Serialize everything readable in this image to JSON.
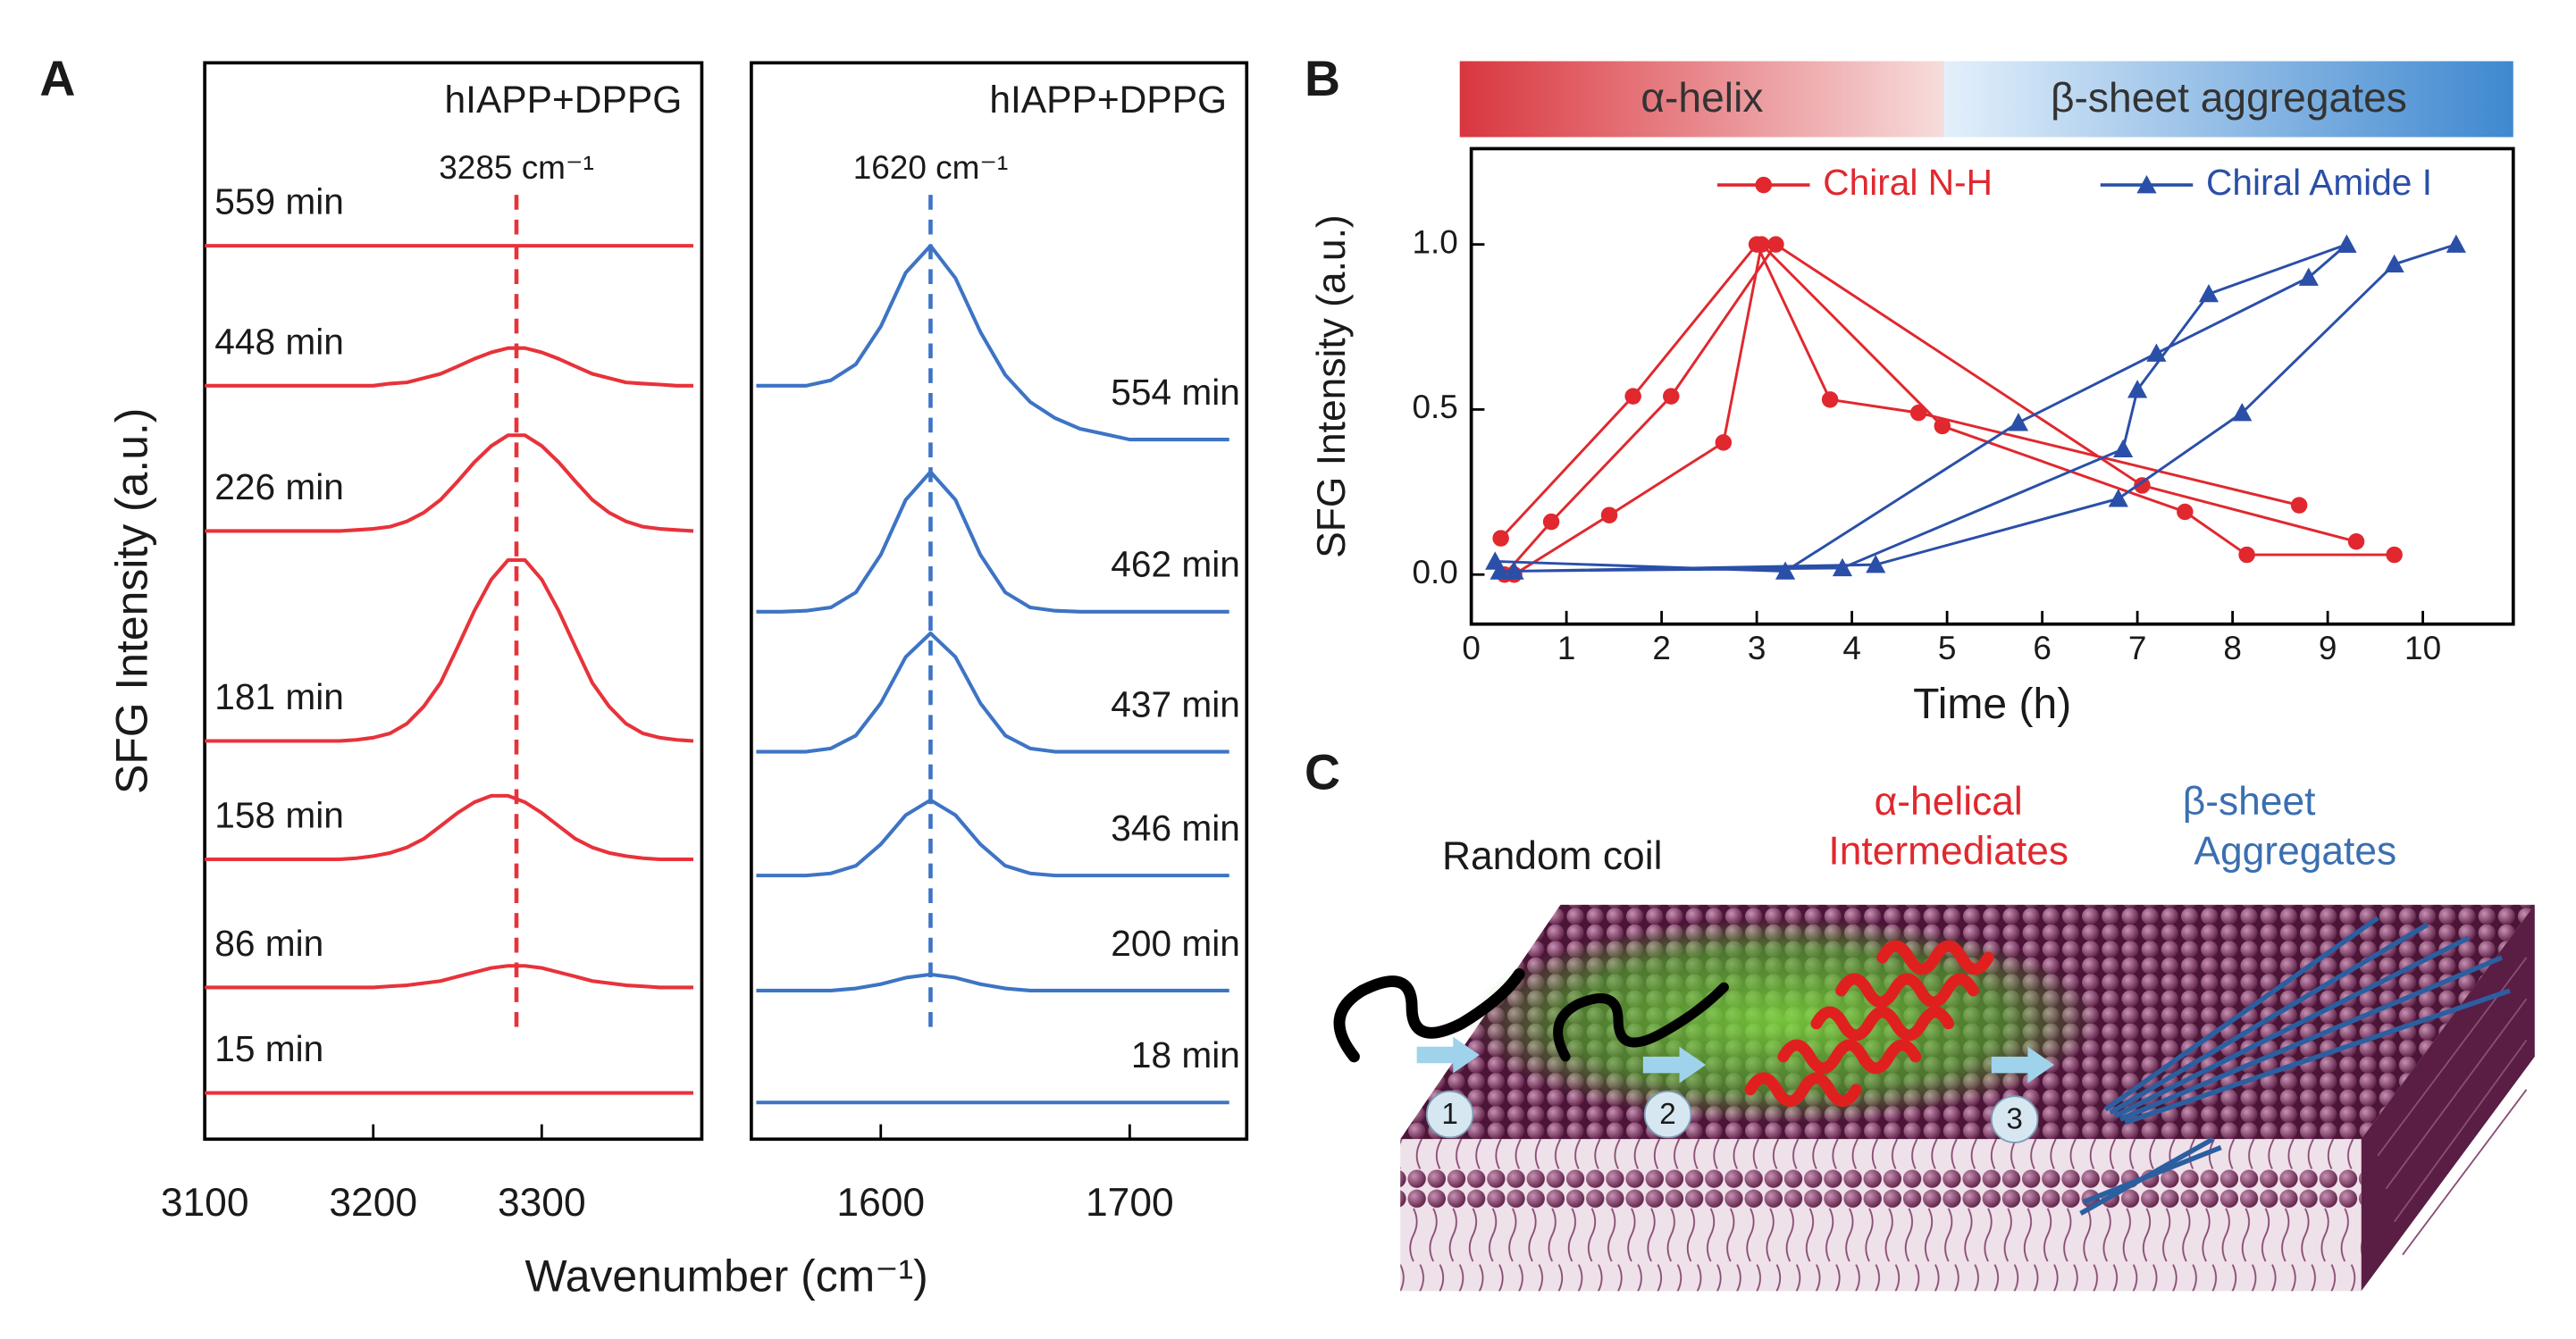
{
  "panel_labels": [
    "A",
    "B",
    "C"
  ],
  "chart_data": [
    {
      "type": "line",
      "title": "hIAPP+DPPG",
      "ylabel": "SFG Intensity (a.u.)",
      "xlabel": "Wavenumber (cm⁻¹)",
      "x": [
        3100,
        3110,
        3120,
        3130,
        3140,
        3150,
        3160,
        3170,
        3180,
        3190,
        3200,
        3210,
        3220,
        3230,
        3240,
        3250,
        3260,
        3270,
        3280,
        3290,
        3300,
        3310,
        3320,
        3330,
        3340,
        3350,
        3360,
        3370,
        3380,
        3390
      ],
      "xlim": [
        3100,
        3395
      ],
      "xticks": [
        3100,
        3200,
        3300
      ],
      "ylim": [
        0,
        10
      ],
      "marker": {
        "value": 3285,
        "label": "3285 cm⁻¹"
      },
      "series": [
        {
          "name": "559 min",
          "color": "#e8323a",
          "values": [
            8.3,
            8.3,
            8.3,
            8.3,
            8.3,
            8.3,
            8.3,
            8.3,
            8.3,
            8.3,
            8.3,
            8.3,
            8.3,
            8.3,
            8.3,
            8.3,
            8.3,
            8.3,
            8.3,
            8.3,
            8.3,
            8.3,
            8.3,
            8.3,
            8.3,
            8.3,
            8.3,
            8.3,
            8.3,
            8.3
          ]
        },
        {
          "name": "448 min",
          "color": "#e8323a",
          "values": [
            7.0,
            7.0,
            7.0,
            7.0,
            7.0,
            7.0,
            7.0,
            7.0,
            7.0,
            7.0,
            7.0,
            7.02,
            7.03,
            7.07,
            7.11,
            7.18,
            7.25,
            7.31,
            7.35,
            7.35,
            7.31,
            7.25,
            7.18,
            7.11,
            7.07,
            7.03,
            7.02,
            7.01,
            7.0,
            7.0
          ]
        },
        {
          "name": "226 min",
          "color": "#e8323a",
          "values": [
            5.65,
            5.65,
            5.65,
            5.65,
            5.65,
            5.65,
            5.65,
            5.65,
            5.65,
            5.66,
            5.67,
            5.69,
            5.74,
            5.82,
            5.94,
            6.11,
            6.29,
            6.44,
            6.54,
            6.54,
            6.44,
            6.29,
            6.11,
            5.94,
            5.82,
            5.74,
            5.69,
            5.67,
            5.66,
            5.65
          ]
        },
        {
          "name": "181 min",
          "color": "#e8323a",
          "values": [
            3.7,
            3.7,
            3.7,
            3.7,
            3.7,
            3.7,
            3.7,
            3.7,
            3.7,
            3.71,
            3.73,
            3.77,
            3.86,
            4.02,
            4.24,
            4.57,
            4.91,
            5.2,
            5.38,
            5.38,
            5.2,
            4.91,
            4.57,
            4.24,
            4.02,
            3.86,
            3.77,
            3.73,
            3.71,
            3.7
          ]
        },
        {
          "name": "158 min",
          "color": "#e8323a",
          "values": [
            2.6,
            2.6,
            2.6,
            2.6,
            2.6,
            2.6,
            2.6,
            2.6,
            2.6,
            2.61,
            2.63,
            2.66,
            2.71,
            2.79,
            2.91,
            3.03,
            3.13,
            3.19,
            3.19,
            3.13,
            3.03,
            2.91,
            2.79,
            2.71,
            2.66,
            2.63,
            2.61,
            2.6,
            2.6,
            2.6
          ]
        },
        {
          "name": "86 min",
          "color": "#e8323a",
          "values": [
            1.41,
            1.41,
            1.41,
            1.41,
            1.41,
            1.41,
            1.41,
            1.41,
            1.41,
            1.41,
            1.41,
            1.42,
            1.43,
            1.45,
            1.47,
            1.51,
            1.55,
            1.59,
            1.61,
            1.61,
            1.59,
            1.55,
            1.51,
            1.47,
            1.45,
            1.43,
            1.42,
            1.41,
            1.41,
            1.41
          ]
        },
        {
          "name": "15 min",
          "color": "#e8323a",
          "values": [
            0.43,
            0.43,
            0.43,
            0.43,
            0.43,
            0.43,
            0.43,
            0.43,
            0.43,
            0.43,
            0.43,
            0.43,
            0.43,
            0.43,
            0.43,
            0.43,
            0.43,
            0.43,
            0.43,
            0.43,
            0.43,
            0.43,
            0.43,
            0.43,
            0.43,
            0.43,
            0.43,
            0.43,
            0.43,
            0.43
          ]
        }
      ]
    },
    {
      "type": "line",
      "title": "hIAPP+DPPG",
      "x": [
        1550,
        1560,
        1570,
        1580,
        1590,
        1600,
        1610,
        1620,
        1630,
        1640,
        1650,
        1660,
        1670,
        1680,
        1690,
        1700,
        1710,
        1720,
        1730,
        1740
      ],
      "xlim": [
        1548,
        1747
      ],
      "xticks": [
        1600,
        1700
      ],
      "ylim": [
        0,
        10
      ],
      "marker": {
        "value": 1620,
        "label": "1620 cm⁻¹"
      },
      "series": [
        {
          "name": "554 min",
          "color": "#3d74c4",
          "values": [
            7.0,
            7.0,
            7.0,
            7.05,
            7.2,
            7.55,
            8.05,
            8.3,
            8.0,
            7.5,
            7.1,
            6.85,
            6.7,
            6.6,
            6.55,
            6.5,
            6.5,
            6.5,
            6.5,
            6.5
          ]
        },
        {
          "name": "462 min",
          "color": "#3d74c4",
          "values": [
            4.9,
            4.9,
            4.91,
            4.94,
            5.08,
            5.43,
            5.94,
            6.2,
            5.94,
            5.43,
            5.08,
            4.94,
            4.91,
            4.9,
            4.9,
            4.9,
            4.9,
            4.9,
            4.9,
            4.9
          ]
        },
        {
          "name": "437 min",
          "color": "#3d74c4",
          "values": [
            3.6,
            3.6,
            3.6,
            3.63,
            3.75,
            4.05,
            4.48,
            4.7,
            4.48,
            4.05,
            3.75,
            3.63,
            3.6,
            3.6,
            3.6,
            3.6,
            3.6,
            3.6,
            3.6,
            3.6
          ]
        },
        {
          "name": "346 min",
          "color": "#3d74c4",
          "values": [
            2.45,
            2.45,
            2.45,
            2.47,
            2.54,
            2.74,
            3.01,
            3.15,
            3.01,
            2.74,
            2.54,
            2.47,
            2.45,
            2.45,
            2.45,
            2.45,
            2.45,
            2.45,
            2.45,
            2.45
          ]
        },
        {
          "name": "200 min",
          "color": "#3d74c4",
          "values": [
            1.38,
            1.38,
            1.38,
            1.38,
            1.4,
            1.44,
            1.5,
            1.53,
            1.5,
            1.44,
            1.4,
            1.38,
            1.38,
            1.38,
            1.38,
            1.38,
            1.38,
            1.38,
            1.38,
            1.38
          ]
        },
        {
          "name": "18 min",
          "color": "#3d74c4",
          "values": [
            0.34,
            0.34,
            0.34,
            0.34,
            0.34,
            0.34,
            0.34,
            0.34,
            0.34,
            0.34,
            0.34,
            0.34,
            0.34,
            0.34,
            0.34,
            0.34,
            0.34,
            0.34,
            0.34,
            0.34
          ]
        }
      ]
    },
    {
      "type": "line",
      "xlabel": "Time (h)",
      "ylabel": "SFG Intensity (a.u.)",
      "phases": [
        {
          "label": "α-helix",
          "color": "#d9363e"
        },
        {
          "label": "β-sheet aggregates",
          "color": "#3f88d0"
        }
      ],
      "xlim": [
        0,
        10.95
      ],
      "xticks": [
        0,
        1,
        2,
        3,
        4,
        5,
        6,
        7,
        8,
        9,
        10
      ],
      "ylim": [
        -0.15,
        1.29
      ],
      "yticks": [
        {
          "value": 0,
          "label": "0.0"
        },
        {
          "value": 0.5,
          "label": "0.5"
        },
        {
          "value": 1,
          "label": "1.0"
        }
      ],
      "series": [
        {
          "name": "Chiral N-H",
          "color": "#e0282e",
          "marker": "circle",
          "x": [
            0.31,
            1.7,
            3.0,
            3.77,
            4.7,
            8.7,
            null,
            0.35,
            0.84,
            2.1,
            3.2,
            7.05,
            9.3,
            null,
            0.45,
            1.45,
            2.65,
            3.05,
            4.95,
            7.5,
            8.15,
            9.7
          ],
          "values": [
            0.11,
            0.54,
            1.0,
            0.53,
            0.49,
            0.21,
            null,
            0.0,
            0.16,
            0.54,
            1.0,
            0.27,
            0.1,
            null,
            0.0,
            0.18,
            0.4,
            1.0,
            0.45,
            0.19,
            0.06,
            0.06
          ]
        },
        {
          "name": "Chiral Amide I",
          "color": "#2a4fa8",
          "marker": "triangle",
          "x": [
            0.25,
            3.3,
            5.75,
            7.2,
            8.8,
            9.2,
            null,
            0.3,
            3.9,
            6.85,
            7.0,
            7.75,
            9.2,
            null,
            0.45,
            4.25,
            6.8,
            8.1,
            9.7,
            10.35
          ],
          "values": [
            0.04,
            0.01,
            0.46,
            0.67,
            0.9,
            1.0,
            null,
            0.01,
            0.02,
            0.38,
            0.56,
            0.85,
            1.0,
            null,
            0.01,
            0.03,
            0.23,
            0.49,
            0.94,
            1.0
          ]
        }
      ]
    }
  ],
  "diagram": {
    "stages": [
      {
        "label": [
          "Random coil"
        ],
        "number": 1
      },
      {
        "label": [
          "α-helical",
          "Intermediates"
        ],
        "number": 2
      },
      {
        "label": [
          "β-sheet",
          "Aggregates"
        ],
        "number": 3
      }
    ]
  }
}
